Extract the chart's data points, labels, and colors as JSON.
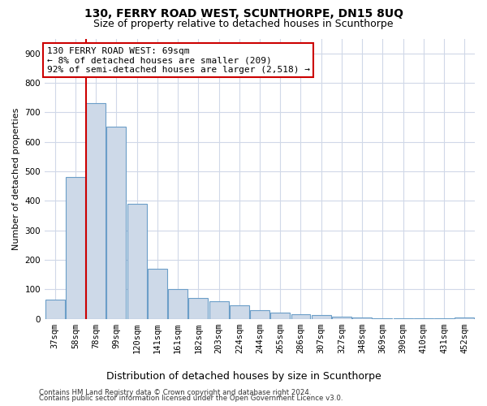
{
  "title": "130, FERRY ROAD WEST, SCUNTHORPE, DN15 8UQ",
  "subtitle": "Size of property relative to detached houses in Scunthorpe",
  "xlabel": "Distribution of detached houses by size in Scunthorpe",
  "ylabel": "Number of detached properties",
  "footer_line1": "Contains HM Land Registry data © Crown copyright and database right 2024.",
  "footer_line2": "Contains public sector information licensed under the Open Government Licence v3.0.",
  "categories": [
    "37sqm",
    "58sqm",
    "78sqm",
    "99sqm",
    "120sqm",
    "141sqm",
    "161sqm",
    "182sqm",
    "203sqm",
    "224sqm",
    "244sqm",
    "265sqm",
    "286sqm",
    "307sqm",
    "327sqm",
    "348sqm",
    "369sqm",
    "390sqm",
    "410sqm",
    "431sqm",
    "452sqm"
  ],
  "values": [
    65,
    480,
    730,
    650,
    390,
    170,
    100,
    70,
    60,
    45,
    30,
    20,
    15,
    12,
    8,
    5,
    3,
    2,
    1,
    1,
    5
  ],
  "bar_color": "#cdd9e8",
  "bar_edge_color": "#6b9ec8",
  "vline_color": "#cc0000",
  "vline_x": 1.5,
  "annotation_text": "130 FERRY ROAD WEST: 69sqm\n← 8% of detached houses are smaller (209)\n92% of semi-detached houses are larger (2,518) →",
  "annotation_box_color": "#ffffff",
  "annotation_box_edge_color": "#cc0000",
  "annotation_fontsize": 8,
  "ylim": [
    0,
    950
  ],
  "yticks": [
    0,
    100,
    200,
    300,
    400,
    500,
    600,
    700,
    800,
    900
  ],
  "title_fontsize": 10,
  "subtitle_fontsize": 9,
  "xlabel_fontsize": 9,
  "ylabel_fontsize": 8,
  "tick_fontsize": 7.5,
  "background_color": "#ffffff",
  "grid_color": "#d0d8e8"
}
